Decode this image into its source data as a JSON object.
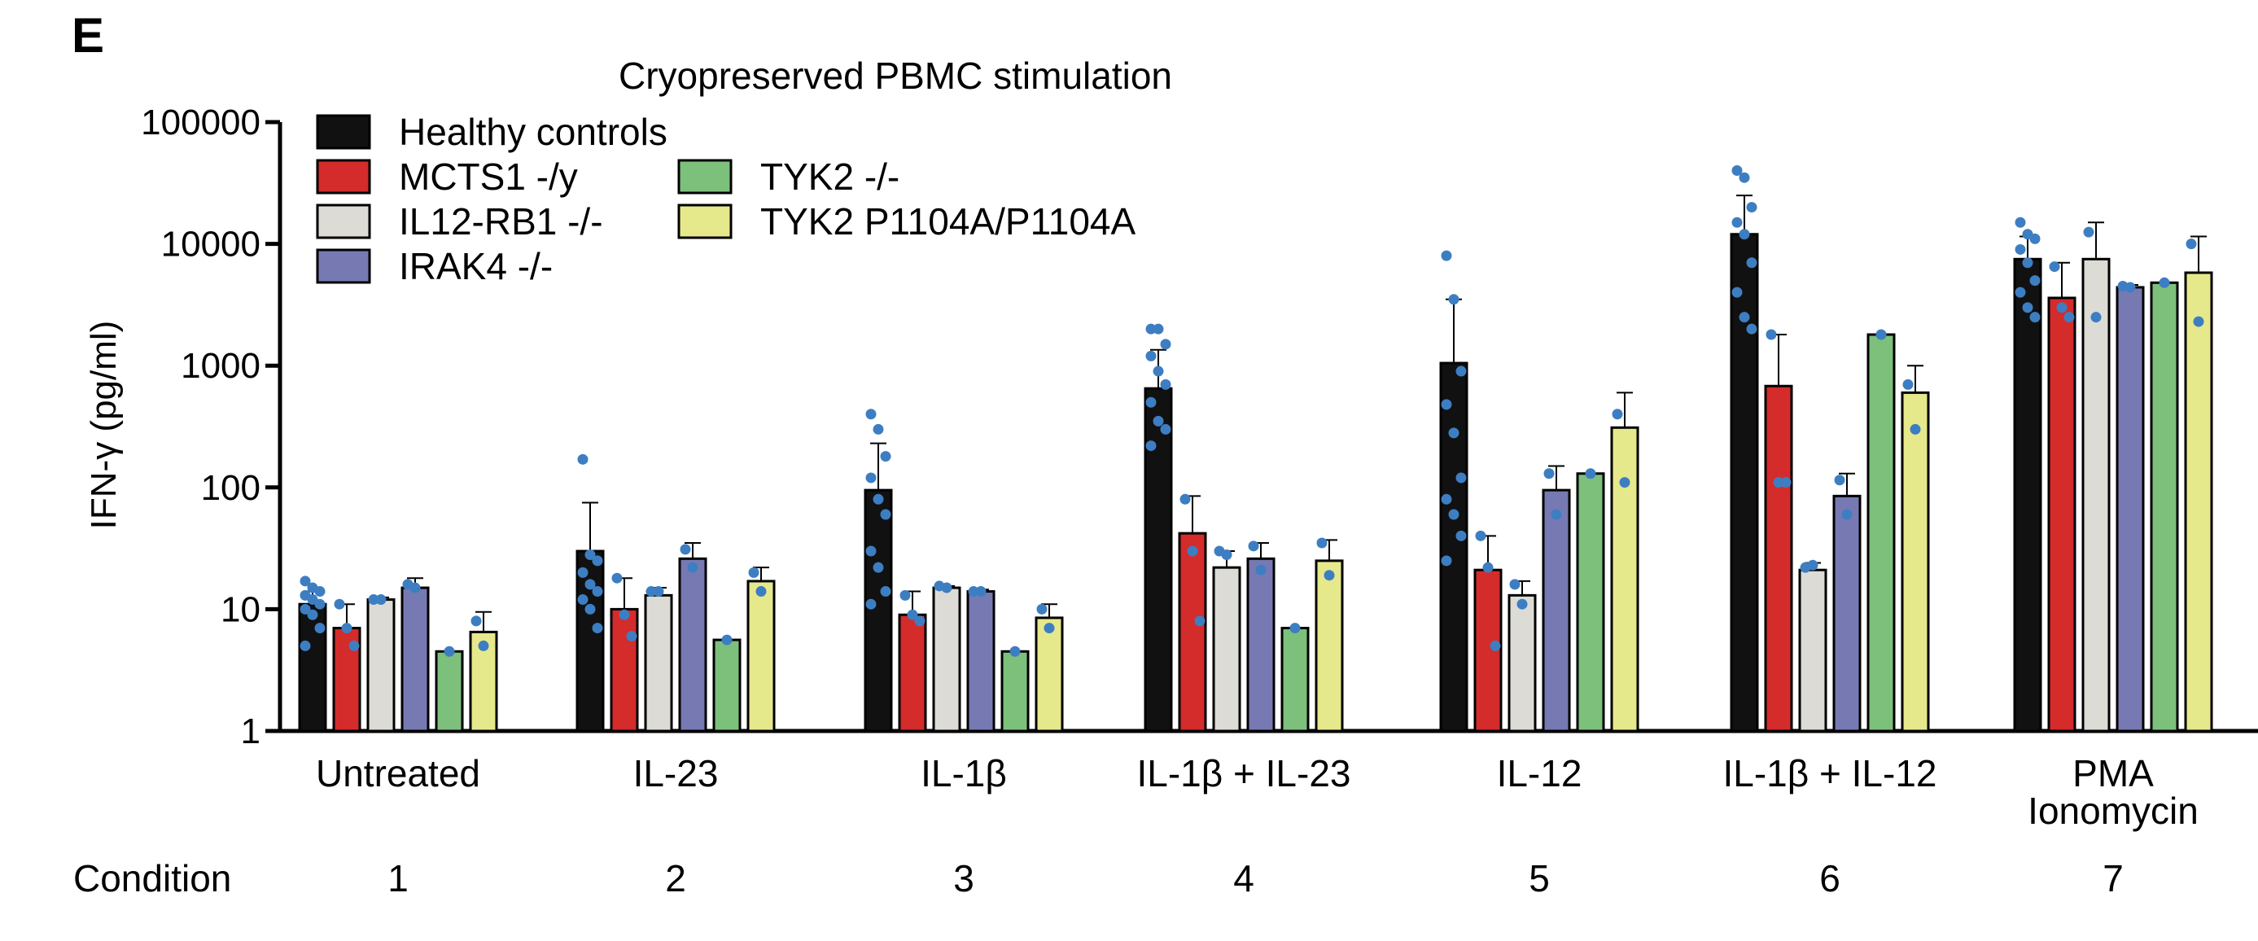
{
  "panel_label": "E",
  "chart_data": {
    "type": "bar",
    "title": "Cryopreserved PBMC stimulation",
    "ylabel": "IFN-γ (pg/ml)",
    "xlabel": "",
    "yscale": "log",
    "ylim": [
      1,
      100000
    ],
    "yticks": [
      "1",
      "10",
      "100",
      "1000",
      "10000",
      "100000"
    ],
    "categories": [
      [
        "Untreated"
      ],
      [
        "IL-23"
      ],
      [
        "IL-1β"
      ],
      [
        "IL-1β + IL-23"
      ],
      [
        "IL-12"
      ],
      [
        "IL-1β + IL-12"
      ],
      [
        "PMA",
        "Ionomycin"
      ]
    ],
    "condition_label": "Condition",
    "condition_numbers": [
      "1",
      "2",
      "3",
      "4",
      "5",
      "6",
      "7"
    ],
    "legend_placement": "top-left",
    "series": [
      {
        "name": "Healthy controls",
        "color": "#111111",
        "values": [
          11,
          30,
          95,
          650,
          1050,
          12000,
          7500
        ],
        "err_upper": [
          14,
          75,
          230,
          1350,
          3500,
          25000,
          11500
        ],
        "points": [
          [
            17,
            15,
            14,
            13,
            12,
            11,
            10,
            9,
            7,
            5
          ],
          [
            170,
            28,
            25,
            20,
            16,
            14,
            12,
            10,
            7
          ],
          [
            400,
            300,
            180,
            120,
            80,
            60,
            30,
            22,
            14,
            11
          ],
          [
            2000,
            2000,
            1500,
            1200,
            900,
            700,
            500,
            350,
            300,
            220
          ],
          [
            8000,
            3500,
            900,
            480,
            280,
            120,
            80,
            60,
            40,
            25
          ],
          [
            40000,
            35000,
            20000,
            15000,
            12000,
            7000,
            4000,
            2500,
            2000
          ],
          [
            15000,
            12000,
            11000,
            9000,
            7000,
            5000,
            4000,
            3000,
            2500
          ]
        ]
      },
      {
        "name": "MCTS1 -/y",
        "color": "#d42b2b",
        "values": [
          7,
          10,
          9,
          42,
          21,
          680,
          3600
        ],
        "err_upper": [
          11,
          18,
          14,
          85,
          40,
          1800,
          7000
        ],
        "points": [
          [
            11,
            7,
            5
          ],
          [
            18,
            9,
            6
          ],
          [
            13,
            9,
            8
          ],
          [
            80,
            30,
            8
          ],
          [
            40,
            22,
            5
          ],
          [
            1800,
            110,
            110
          ],
          [
            6500,
            3000,
            2500
          ]
        ]
      },
      {
        "name": "IL12-RB1 -/-",
        "color": "#dcdbd5",
        "values": [
          12,
          13,
          15,
          22,
          13,
          21,
          7500
        ],
        "err_upper": [
          12.5,
          15,
          15.5,
          30,
          17,
          24,
          15000
        ],
        "points": [
          [
            12,
            12
          ],
          [
            14,
            14
          ],
          [
            15.5,
            15
          ],
          [
            30,
            28
          ],
          [
            16,
            11
          ],
          [
            22,
            23
          ],
          [
            12500,
            2500
          ]
        ]
      },
      {
        "name": "IRAK4 -/-",
        "color": "#7779b3",
        "values": [
          15,
          26,
          14,
          26,
          95,
          85,
          4400
        ],
        "err_upper": [
          18,
          35,
          14.5,
          35,
          150,
          130,
          4600
        ],
        "points": [
          [
            16,
            15
          ],
          [
            31,
            22
          ],
          [
            14,
            14
          ],
          [
            33,
            21
          ],
          [
            130,
            60
          ],
          [
            115,
            60
          ],
          [
            4500,
            4400
          ]
        ]
      },
      {
        "name": "TYK2 -/-",
        "color": "#7cc07c",
        "values": [
          4.5,
          5.6,
          4.5,
          7,
          130,
          1800,
          4800
        ],
        "err_upper": [
          null,
          null,
          null,
          null,
          null,
          null,
          null
        ],
        "points": [
          [
            4.5
          ],
          [
            5.6
          ],
          [
            4.5
          ],
          [
            7
          ],
          [
            130
          ],
          [
            1800
          ],
          [
            4800
          ]
        ]
      },
      {
        "name": "TYK2 P1104A/P1104A",
        "color": "#e6e88c",
        "values": [
          6.5,
          17,
          8.5,
          25,
          310,
          600,
          5800
        ],
        "err_upper": [
          9.5,
          22,
          11,
          37,
          600,
          1000,
          11500
        ],
        "points": [
          [
            8,
            5
          ],
          [
            20,
            14
          ],
          [
            10,
            7
          ],
          [
            35,
            19
          ],
          [
            400,
            110
          ],
          [
            700,
            300
          ],
          [
            10000,
            2300
          ]
        ]
      }
    ]
  },
  "legend_layout": [
    [
      0
    ],
    [
      1,
      4
    ],
    [
      2,
      5
    ],
    [
      3
    ]
  ]
}
